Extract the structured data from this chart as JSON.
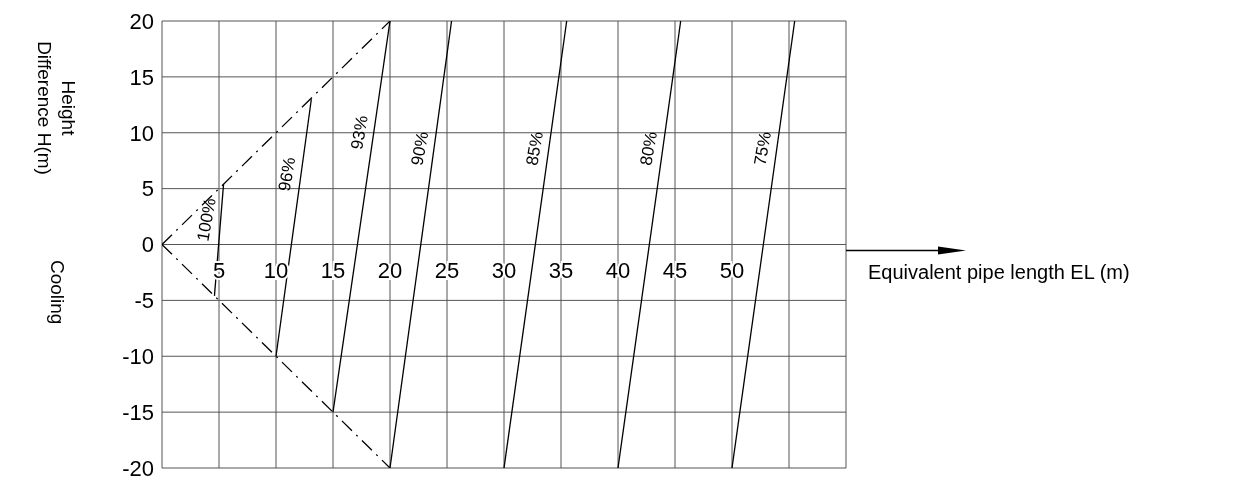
{
  "chart_data": {
    "type": "line",
    "xlabel": "Equivalent pipe length EL (m)",
    "ylabel": "Height Difference H(m)",
    "annotations": [
      "Cooling"
    ],
    "xlim": [
      0,
      60
    ],
    "ylim": [
      -20,
      20
    ],
    "xticks": [
      {
        "value": 0,
        "label": null
      },
      5,
      10,
      15,
      20,
      25,
      30,
      35,
      40,
      45,
      50,
      {
        "value": 55,
        "label": null
      },
      {
        "value": 60,
        "label": null
      }
    ],
    "yticks": [
      -20,
      -15,
      -10,
      -5,
      0,
      5,
      10,
      15,
      20
    ],
    "grid": true,
    "legend": false,
    "series": [
      {
        "name": "100%",
        "color": "#000000",
        "x": [
          4.6,
          5.4
        ],
        "values": [
          -4.6,
          5.4
        ]
      },
      {
        "name": "96%",
        "color": "#000000",
        "x": [
          10,
          13.1
        ],
        "values": [
          -10,
          13
        ]
      },
      {
        "name": "93%",
        "color": "#000000",
        "x": [
          15,
          20
        ],
        "values": [
          -15,
          20
        ]
      },
      {
        "name": "90%",
        "color": "#000000",
        "x": [
          20,
          25.4
        ],
        "values": [
          -20,
          20
        ]
      },
      {
        "name": "85%",
        "color": "#000000",
        "x": [
          30,
          35.5
        ],
        "values": [
          -20,
          20
        ]
      },
      {
        "name": "80%",
        "color": "#000000",
        "x": [
          40,
          45.5
        ],
        "values": [
          -20,
          20
        ]
      },
      {
        "name": "75%",
        "color": "#000000",
        "x": [
          50,
          55.5
        ],
        "values": [
          -20,
          20
        ]
      },
      {
        "color": "#000000",
        "x": [
          0,
          20
        ],
        "values": [
          0,
          20
        ],
        "line_style": "dashed"
      },
      {
        "color": "#000000",
        "x": [
          0,
          20
        ],
        "values": [
          0,
          -20
        ],
        "line_style": "dashed"
      }
    ]
  }
}
